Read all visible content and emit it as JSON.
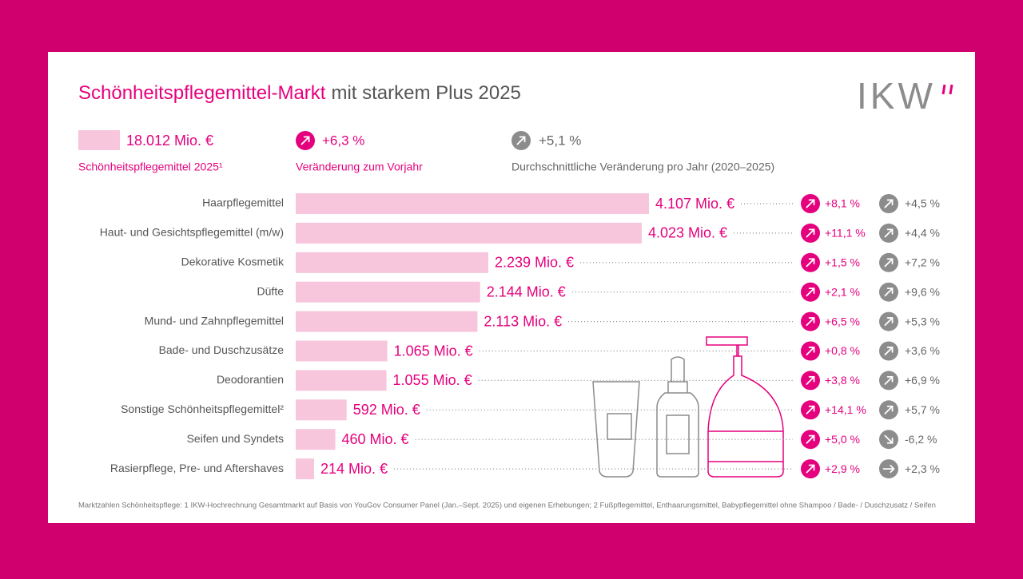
{
  "header": {
    "title_highlight": "Schönheitspflegemittel-Markt",
    "title_rest": "mit starkem Plus 2025",
    "logo": "IKW"
  },
  "summary": {
    "total": {
      "value": 18012,
      "label": "18.012 Mio. €",
      "caption": "Schönheitspflegemittel 2025¹"
    },
    "yoy": {
      "value": 6.3,
      "label": "+6,3 %",
      "caption": "Veränderung zum Vorjahr",
      "icon": "up"
    },
    "avg": {
      "value": 5.1,
      "label": "+5,1 %",
      "caption": "Durchschnittliche Veränderung pro Jahr (2020–2025)",
      "icon": "up"
    }
  },
  "chart_data": {
    "type": "bar",
    "orientation": "horizontal",
    "color": "#f7c6dc",
    "label_color": "#e5007d",
    "categories": [
      "Haarpflegemittel",
      "Haut- und Gesichtspflegemittel (m/w)",
      "Dekorative Kosmetik",
      "Düfte",
      "Mund- und Zahnpflegemittel",
      "Bade- und Duschzusätze",
      "Deodorantien",
      "Sonstige Schönheitspflegemittel²",
      "Seifen und Syndets",
      "Rasierpflege, Pre- und Aftershaves"
    ],
    "values": [
      4107,
      4023,
      2239,
      2144,
      2113,
      1065,
      1055,
      592,
      460,
      214
    ],
    "value_labels": [
      "4.107 Mio. €",
      "4.023 Mio. €",
      "2.239 Mio. €",
      "2.144 Mio. €",
      "2.113 Mio. €",
      "1.065 Mio. €",
      "1.055 Mio. €",
      "592 Mio. €",
      "460 Mio. €",
      "214 Mio. €"
    ],
    "changes": [
      {
        "name": "Veränderung zum Vorjahr",
        "color": "#e5007d",
        "values": [
          8.1,
          11.1,
          1.5,
          2.1,
          6.5,
          0.8,
          3.8,
          14.1,
          5.0,
          2.9
        ],
        "value_labels": [
          "+8,1 %",
          "+11,1 %",
          "+1,5 %",
          "+2,1 %",
          "+6,5 %",
          "+0,8 %",
          "+3,8 %",
          "+14,1 %",
          "+5,0 %",
          "+2,9 %"
        ],
        "icons": [
          "up",
          "up",
          "up",
          "up",
          "up",
          "up",
          "up",
          "up",
          "up",
          "up"
        ]
      },
      {
        "name": "Durchschnittliche Veränderung pro Jahr (2020–2025)",
        "color": "#8c8c8c",
        "values": [
          4.5,
          4.4,
          7.2,
          9.6,
          5.3,
          3.6,
          6.9,
          5.7,
          -6.2,
          2.3
        ],
        "value_labels": [
          "+4,5 %",
          "+4,4 %",
          "+7,2 %",
          "+9,6 %",
          "+5,3 %",
          "+3,6 %",
          "+6,9 %",
          "+5,7 %",
          "-6,2 %",
          "+2,3 %"
        ],
        "icons": [
          "up",
          "up",
          "up",
          "up",
          "up",
          "up",
          "up",
          "up",
          "down",
          "right"
        ]
      }
    ]
  },
  "footnote": "Marktzahlen Schönheitspflege: 1 IKW-Hochrechnung Gesamtmarkt auf Basis von YouGov Consumer Panel (Jan.–Sept. 2025) und eigenen Erhebungen; 2 Fußpflegemittel, Enthaarungsmittel, Babypflegemittel ohne Shampoo / Bade- / Duschzusatz / Seifen"
}
